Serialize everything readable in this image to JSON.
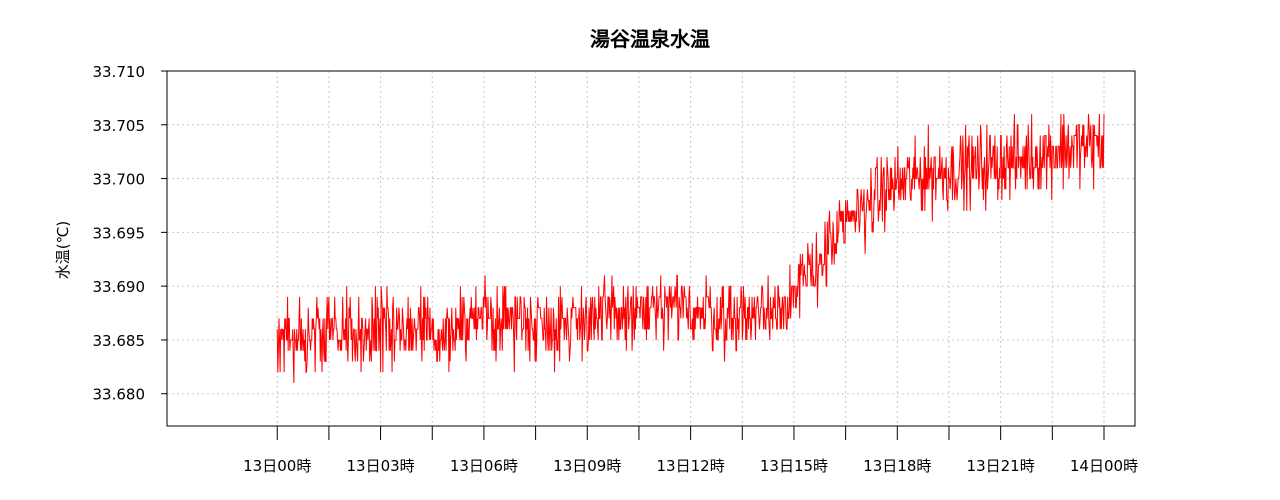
{
  "chart_data": {
    "type": "line",
    "title": "湯谷温泉水温",
    "xlabel": "",
    "ylabel": "水温(℃)",
    "ylim": [
      33.677,
      33.71
    ],
    "xlim_hours": [
      -3.2,
      24.9
    ],
    "grid": true,
    "legend": "none",
    "line_color": "#ff0000",
    "y_ticks": [
      33.68,
      33.685,
      33.69,
      33.695,
      33.7,
      33.705,
      33.71
    ],
    "y_tick_labels": [
      "33.680",
      "33.685",
      "33.690",
      "33.695",
      "33.700",
      "33.705",
      "33.710"
    ],
    "x_ticks_hours": [
      0,
      3,
      6,
      9,
      12,
      15,
      18,
      21,
      24
    ],
    "x_tick_labels": [
      "13日00時",
      "13日03時",
      "13日06時",
      "13日09時",
      "13日12時",
      "13日15時",
      "13日18時",
      "13日21時",
      "14日00時"
    ],
    "x_minor_ticks_hours": [
      1.5,
      4.5,
      7.5,
      10.5,
      13.5,
      16.5,
      19.5,
      22.5
    ],
    "series": [
      {
        "x_hours": [
          0,
          1,
          2,
          3,
          4,
          5,
          6,
          7,
          8,
          9,
          10,
          11,
          12,
          13,
          14,
          15,
          16,
          17,
          18,
          19,
          20,
          21,
          22,
          23,
          24
        ],
        "values": [
          33.685,
          33.6855,
          33.686,
          33.6855,
          33.686,
          33.686,
          33.687,
          33.687,
          33.6865,
          33.687,
          33.6875,
          33.6875,
          33.688,
          33.687,
          33.6875,
          33.689,
          33.6935,
          33.6975,
          33.6995,
          33.7005,
          33.701,
          33.7015,
          33.702,
          33.703,
          33.703
        ],
        "noise_amplitude": 0.003,
        "samples_per_hour": 60
      }
    ]
  }
}
